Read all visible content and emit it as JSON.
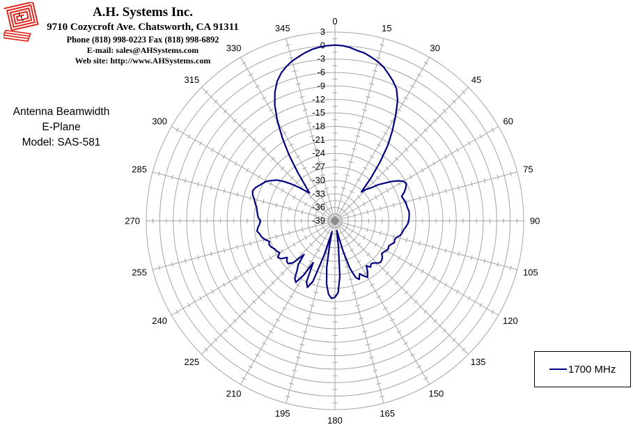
{
  "header": {
    "logo_icon": "red-square-spiral-logo",
    "logo_color": "#E0251C",
    "company_name": "A.H. Systems Inc.",
    "address": "9710 Cozycroft Ave. Chatsworth, CA 91311",
    "phone_fax": "Phone (818) 998-0223 Fax (818) 998-6892",
    "email": "E-mail: sales@AHSystems.com",
    "website": "Web site: http://www.AHSystems.com"
  },
  "chart_info": {
    "title": "Antenna Beamwidth",
    "plane": "E-Plane",
    "model": "Model: SAS-581"
  },
  "legend": {
    "entries": [
      {
        "label": "1700 MHz",
        "line_color": "#000080"
      }
    ]
  },
  "colors": {
    "grid": "#A3A3A3",
    "series": "#000080",
    "center_marker": "#8C8C8C",
    "labels": "#000000"
  },
  "chart_data": {
    "type": "line",
    "polar": true,
    "title": "",
    "units": "dB",
    "grid": {
      "rings_every_db": 3,
      "spokes_every_deg": 15,
      "legend_position": "bottom-right"
    },
    "angle_labels_deg": [
      0,
      15,
      30,
      45,
      60,
      75,
      90,
      105,
      120,
      135,
      150,
      165,
      180,
      195,
      210,
      225,
      240,
      255,
      270,
      285,
      300,
      315,
      330,
      345
    ],
    "radial_axis": {
      "min": -39,
      "max": 3,
      "step": 3,
      "tick_labels": [
        "3",
        "0",
        "-3",
        "-6",
        "-9",
        "-12",
        "-15",
        "-18",
        "-21",
        "-24",
        "-27",
        "-30",
        "-33",
        "-36",
        "-39"
      ]
    },
    "series": [
      {
        "name": "1700 MHz",
        "color": "#000080",
        "points_deg_db": [
          [
            0,
            0.1
          ],
          [
            2.5,
            0
          ],
          [
            5,
            -0.3
          ],
          [
            7.5,
            -0.8
          ],
          [
            10,
            -1.1
          ],
          [
            12.5,
            -1.7
          ],
          [
            15,
            -2.3
          ],
          [
            17.5,
            -3.1
          ],
          [
            20,
            -4.2
          ],
          [
            22.5,
            -5.3
          ],
          [
            25,
            -6.6
          ],
          [
            27.5,
            -8.8
          ],
          [
            30,
            -12
          ],
          [
            32.5,
            -15.2
          ],
          [
            35,
            -18.5
          ],
          [
            37.5,
            -22.5
          ],
          [
            40,
            -26.5
          ],
          [
            42.5,
            -30.3
          ],
          [
            45,
            -29
          ],
          [
            47.5,
            -28.2
          ],
          [
            50,
            -26.5
          ],
          [
            52.5,
            -25.3
          ],
          [
            55,
            -23.8
          ],
          [
            57.5,
            -22.4
          ],
          [
            60,
            -21.4
          ],
          [
            62.5,
            -21.1
          ],
          [
            65,
            -21.6
          ],
          [
            67.5,
            -22.3
          ],
          [
            70,
            -23.2
          ],
          [
            72.5,
            -23
          ],
          [
            75,
            -22.8
          ],
          [
            77.5,
            -22.7
          ],
          [
            80,
            -22.6
          ],
          [
            82.5,
            -22.4
          ],
          [
            85,
            -22.4
          ],
          [
            87.5,
            -22.5
          ],
          [
            90,
            -22.6
          ],
          [
            92.5,
            -22.8
          ],
          [
            95,
            -23.2
          ],
          [
            97.5,
            -23.6
          ],
          [
            100,
            -23.8
          ],
          [
            102.5,
            -24.1
          ],
          [
            105,
            -24.8
          ],
          [
            107.5,
            -25.1
          ],
          [
            110,
            -24.9
          ],
          [
            112.5,
            -25.4
          ],
          [
            115,
            -25.8
          ],
          [
            117.5,
            -25.6
          ],
          [
            120,
            -25.8
          ],
          [
            122.5,
            -26.1
          ],
          [
            125,
            -26.3
          ],
          [
            127.5,
            -25.7
          ],
          [
            130,
            -25.4
          ],
          [
            132.5,
            -25.3
          ],
          [
            135,
            -25.7
          ],
          [
            137.5,
            -26.3
          ],
          [
            140,
            -26.5
          ],
          [
            142.5,
            -26
          ],
          [
            145,
            -26.8
          ],
          [
            147.5,
            -25.5
          ],
          [
            150,
            -24.5
          ],
          [
            152.5,
            -25.2
          ],
          [
            155,
            -26
          ],
          [
            157.5,
            -24.9
          ],
          [
            160,
            -25.6
          ],
          [
            162.5,
            -28
          ],
          [
            165,
            -32
          ],
          [
            167.5,
            -35.5
          ],
          [
            170,
            -36.8
          ],
          [
            172.5,
            -33
          ],
          [
            175,
            -26.5
          ],
          [
            177.5,
            -23
          ],
          [
            180,
            -22
          ],
          [
            182.5,
            -21.7
          ],
          [
            185,
            -22.6
          ],
          [
            187.5,
            -24.8
          ],
          [
            190,
            -28.5
          ],
          [
            192.5,
            -33.5
          ],
          [
            195,
            -36.5
          ],
          [
            197.5,
            -31
          ],
          [
            200,
            -24.6
          ],
          [
            202.5,
            -23
          ],
          [
            205,
            -24
          ],
          [
            207.5,
            -28.5
          ],
          [
            210,
            -25
          ],
          [
            212.5,
            -22.8
          ],
          [
            215,
            -23.4
          ],
          [
            217.5,
            -25.2
          ],
          [
            220,
            -26.3
          ],
          [
            222.5,
            -28.8
          ],
          [
            225,
            -25.8
          ],
          [
            227.5,
            -24.9
          ],
          [
            230,
            -25
          ],
          [
            232.5,
            -25.6
          ],
          [
            235,
            -24.3
          ],
          [
            237.5,
            -23.9
          ],
          [
            240,
            -24.8
          ],
          [
            242.5,
            -24.4
          ],
          [
            245,
            -24.2
          ],
          [
            247.5,
            -23.7
          ],
          [
            250,
            -23.4
          ],
          [
            252.5,
            -23.7
          ],
          [
            255,
            -22.9
          ],
          [
            257.5,
            -22.3
          ],
          [
            260,
            -22
          ],
          [
            262.5,
            -21.5
          ],
          [
            265,
            -21.8
          ],
          [
            267.5,
            -22.2
          ],
          [
            270,
            -22.4
          ],
          [
            272.5,
            -21.9
          ],
          [
            275,
            -21.7
          ],
          [
            277.5,
            -21.5
          ],
          [
            280,
            -21.3
          ],
          [
            282.5,
            -20.8
          ],
          [
            285,
            -20.4
          ],
          [
            287.5,
            -19.8
          ],
          [
            290,
            -19.5
          ],
          [
            292.5,
            -19.8
          ],
          [
            295,
            -20.4
          ],
          [
            297.5,
            -20.9
          ],
          [
            300,
            -21.4
          ],
          [
            302.5,
            -22.3
          ],
          [
            305,
            -23.2
          ],
          [
            307.5,
            -24.6
          ],
          [
            310,
            -26.2
          ],
          [
            312.5,
            -27.8
          ],
          [
            315,
            -29.4
          ],
          [
            317.5,
            -30.6
          ],
          [
            320,
            -28.6
          ],
          [
            322.5,
            -25.3
          ],
          [
            325,
            -21.3
          ],
          [
            327.5,
            -17.3
          ],
          [
            330,
            -13.4
          ],
          [
            332.5,
            -10
          ],
          [
            335,
            -7.4
          ],
          [
            337.5,
            -5.4
          ],
          [
            340,
            -4
          ],
          [
            342.5,
            -3
          ],
          [
            345,
            -2.2
          ],
          [
            347.5,
            -1.6
          ],
          [
            350,
            -1
          ],
          [
            352.5,
            -0.5
          ],
          [
            355,
            -0.2
          ],
          [
            357.5,
            0
          ]
        ]
      }
    ]
  }
}
